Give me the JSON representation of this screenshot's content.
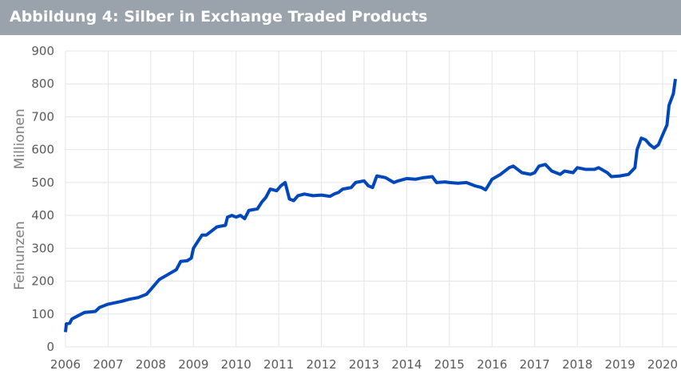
{
  "header": {
    "title": "Abbildung 4: Silber in Exchange Traded Products"
  },
  "chart_data": {
    "type": "line",
    "title": "Abbildung 4: Silber in Exchange Traded Products",
    "ylabel_parts": [
      "Feinunzen",
      "Millionen"
    ],
    "xlabel": "",
    "xlim": [
      2006,
      2020.3
    ],
    "ylim": [
      0,
      900
    ],
    "xticks": [
      "2006",
      "2007",
      "2008",
      "2009",
      "2010",
      "2011",
      "2012",
      "2013",
      "2014",
      "2015",
      "2016",
      "2017",
      "2018",
      "2019",
      "2020"
    ],
    "yticks": [
      "0",
      "100",
      "200",
      "300",
      "400",
      "500",
      "600",
      "700",
      "800",
      "900"
    ],
    "grid": true,
    "line_color": "#0047bb",
    "series": [
      {
        "x": [
          2006.0,
          2006.02,
          2006.1,
          2006.15,
          2006.3,
          2006.45,
          2006.7,
          2006.8,
          2007.0,
          2007.3,
          2007.5,
          2007.7,
          2007.9,
          2008.0,
          2008.1,
          2008.2,
          2008.4,
          2008.6,
          2008.7,
          2008.85,
          2008.95,
          2009.0,
          2009.1,
          2009.2,
          2009.3,
          2009.45,
          2009.55,
          2009.75,
          2009.8,
          2009.9,
          2010.0,
          2010.1,
          2010.2,
          2010.3,
          2010.5,
          2010.6,
          2010.7,
          2010.8,
          2010.95,
          2011.05,
          2011.15,
          2011.25,
          2011.35,
          2011.45,
          2011.6,
          2011.8,
          2012.0,
          2012.2,
          2012.3,
          2012.4,
          2012.5,
          2012.7,
          2012.8,
          2013.0,
          2013.1,
          2013.2,
          2013.3,
          2013.5,
          2013.7,
          2013.8,
          2014.0,
          2014.2,
          2014.4,
          2014.6,
          2014.7,
          2014.9,
          2015.0,
          2015.2,
          2015.4,
          2015.6,
          2015.75,
          2015.85,
          2016.0,
          2016.2,
          2016.4,
          2016.5,
          2016.7,
          2016.9,
          2017.0,
          2017.1,
          2017.25,
          2017.4,
          2017.6,
          2017.7,
          2017.9,
          2018.0,
          2018.2,
          2018.4,
          2018.5,
          2018.7,
          2018.8,
          2019.0,
          2019.2,
          2019.35,
          2019.4,
          2019.5,
          2019.6,
          2019.7,
          2019.8,
          2019.9,
          2020.0,
          2020.1,
          2020.15,
          2020.25,
          2020.3
        ],
        "values": [
          45,
          70,
          72,
          85,
          95,
          105,
          108,
          120,
          130,
          138,
          145,
          150,
          160,
          175,
          190,
          205,
          220,
          235,
          260,
          262,
          270,
          300,
          320,
          340,
          340,
          355,
          365,
          370,
          395,
          400,
          395,
          400,
          390,
          415,
          420,
          440,
          455,
          480,
          475,
          490,
          500,
          450,
          445,
          460,
          465,
          460,
          462,
          458,
          465,
          470,
          480,
          485,
          500,
          505,
          490,
          485,
          520,
          515,
          500,
          505,
          512,
          510,
          515,
          518,
          500,
          502,
          500,
          498,
          500,
          490,
          485,
          478,
          510,
          525,
          545,
          550,
          530,
          525,
          530,
          550,
          555,
          535,
          525,
          535,
          530,
          545,
          540,
          540,
          545,
          530,
          518,
          520,
          525,
          545,
          600,
          635,
          630,
          615,
          605,
          615,
          645,
          675,
          735,
          770,
          815
        ]
      }
    ]
  }
}
